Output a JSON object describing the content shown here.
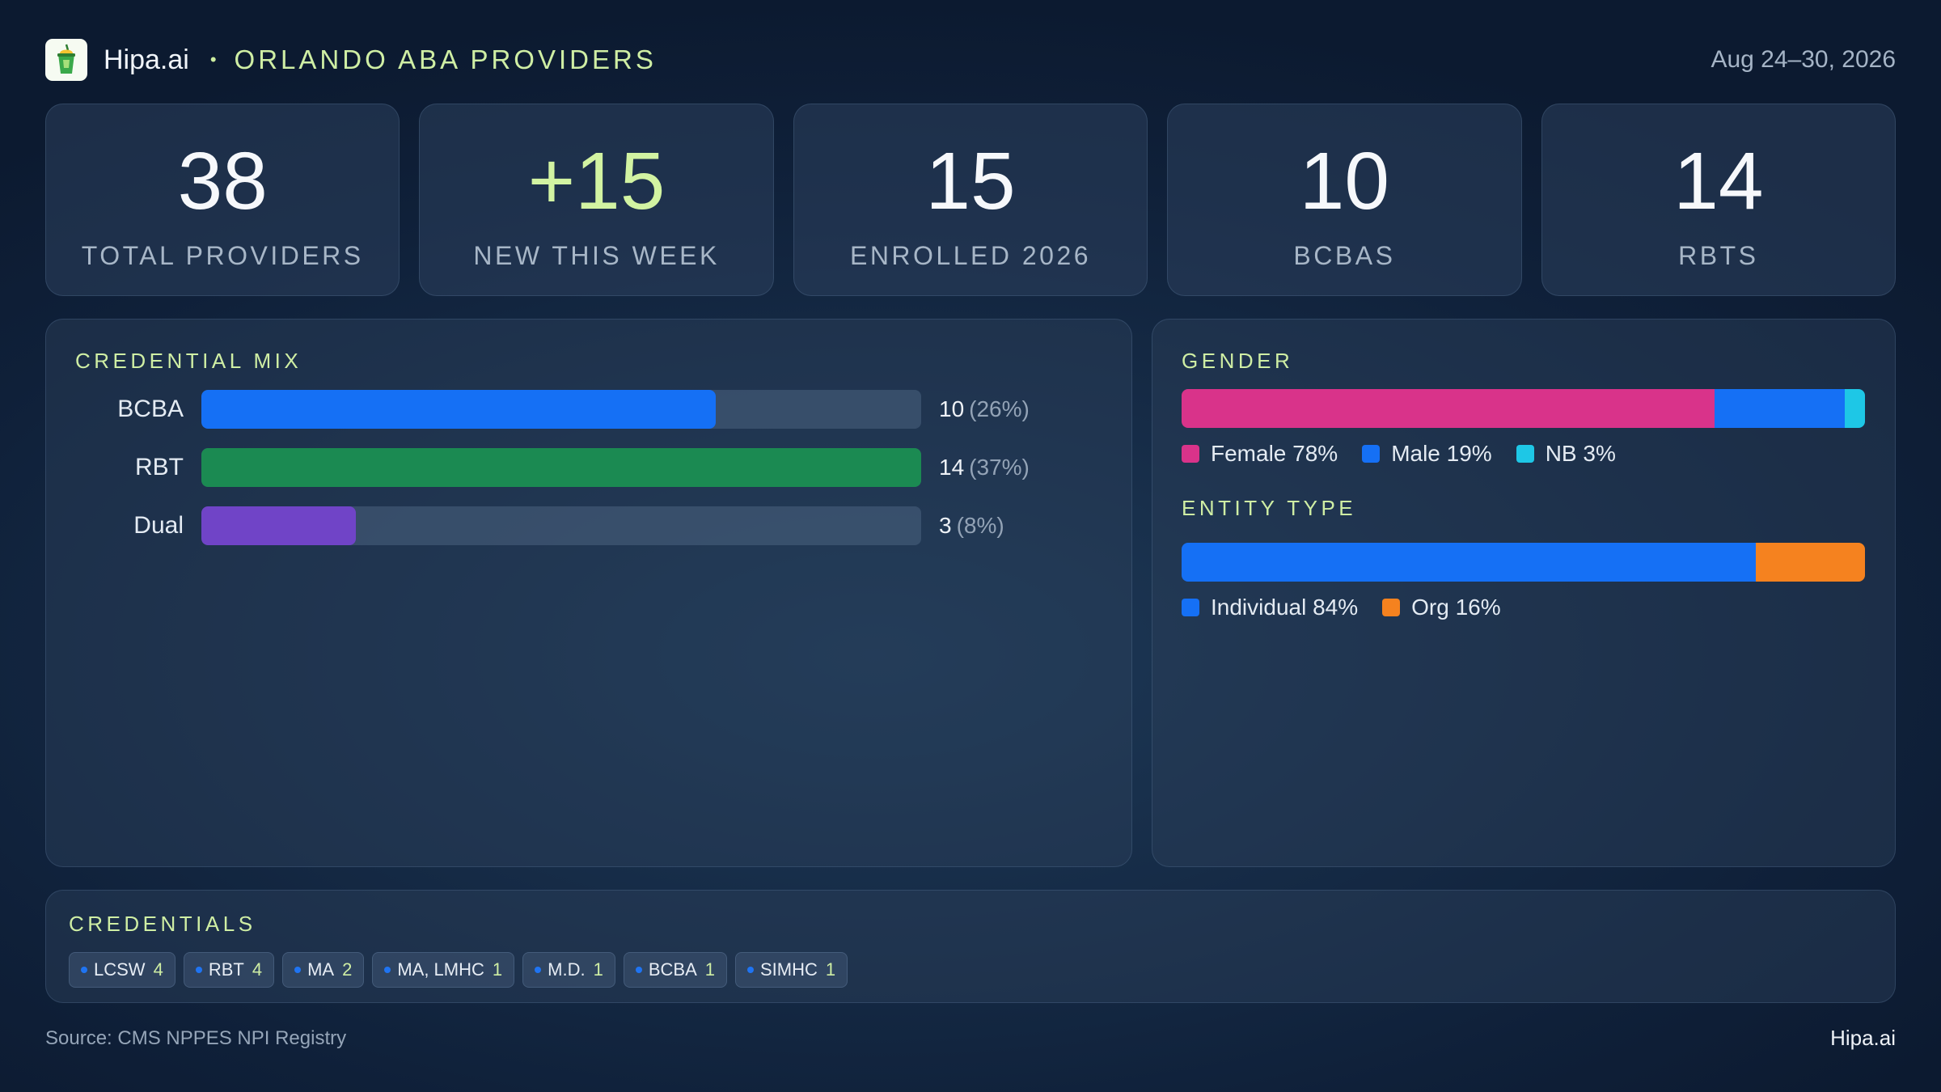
{
  "header": {
    "logo_icon": "cup-icon",
    "brand": "Hipa.ai",
    "separator": "•",
    "region": "ORLANDO ABA PROVIDERS",
    "date_range": "Aug 24–30, 2026"
  },
  "kpis": [
    {
      "value": "38",
      "label": "TOTAL PROVIDERS",
      "accent": false
    },
    {
      "value": "+15",
      "label": "NEW THIS WEEK",
      "accent": true
    },
    {
      "value": "15",
      "label": "ENROLLED 2026",
      "accent": false
    },
    {
      "value": "10",
      "label": "BCBAS",
      "accent": false
    },
    {
      "value": "14",
      "label": "RBTS",
      "accent": false
    }
  ],
  "credential_mix": {
    "title": "CREDENTIAL MIX",
    "rows": [
      {
        "label": "BCBA",
        "value": "10",
        "pct": "(26%)",
        "color": "#1570f5"
      },
      {
        "label": "RBT",
        "value": "14",
        "pct": "(37%)",
        "color": "#1b8a52"
      },
      {
        "label": "Dual",
        "value": "3",
        "pct": "(8%)",
        "color": "#7044c7"
      }
    ]
  },
  "chart_data": [
    {
      "type": "bar",
      "title": "CREDENTIAL MIX",
      "categories": [
        "BCBA",
        "RBT",
        "Dual"
      ],
      "values": [
        10,
        14,
        3
      ],
      "percent_labels": [
        "26%",
        "37%",
        "8%"
      ],
      "xlim": [
        0,
        14
      ]
    },
    {
      "type": "bar",
      "title": "GENDER",
      "stacked": true,
      "categories": [
        "Female",
        "Male",
        "NB"
      ],
      "values": [
        78,
        19,
        3
      ],
      "colors": [
        "#d9338a",
        "#1570f5",
        "#1ec7e6"
      ]
    },
    {
      "type": "bar",
      "title": "ENTITY TYPE",
      "stacked": true,
      "categories": [
        "Individual",
        "Org"
      ],
      "values": [
        84,
        16
      ],
      "colors": [
        "#1570f5",
        "#f5821f"
      ]
    }
  ],
  "gender": {
    "title": "GENDER",
    "legend": [
      {
        "label": "Female 78%",
        "color": "#d9338a"
      },
      {
        "label": "Male 19%",
        "color": "#1570f5"
      },
      {
        "label": "NB 3%",
        "color": "#1ec7e6"
      }
    ]
  },
  "entity": {
    "title": "ENTITY TYPE",
    "legend": [
      {
        "label": "Individual 84%",
        "color": "#1570f5"
      },
      {
        "label": "Org 16%",
        "color": "#f5821f"
      }
    ]
  },
  "credentials": {
    "title": "CREDENTIALS",
    "chips": [
      {
        "label": "LCSW",
        "count": "4"
      },
      {
        "label": "RBT",
        "count": "4"
      },
      {
        "label": "MA",
        "count": "2"
      },
      {
        "label": "MA, LMHC",
        "count": "1"
      },
      {
        "label": "M.D.",
        "count": "1"
      },
      {
        "label": "BCBA",
        "count": "1"
      },
      {
        "label": "SIMHC",
        "count": "1"
      }
    ]
  },
  "footer": {
    "source": "Source: CMS NPPES NPI Registry",
    "brand": "Hipa.ai"
  }
}
